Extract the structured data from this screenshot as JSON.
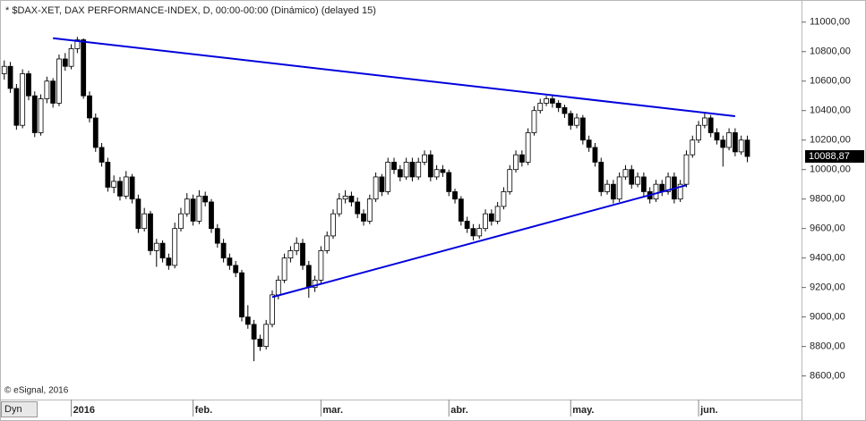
{
  "chart_data": {
    "type": "candlestick",
    "title": "* $DAX-XET, DAX PERFORMANCE-INDEX, D, 00:00-00:00 (Dinámico) (delayed 15)",
    "credit": "© eSignal, 2016",
    "button": "Dyn",
    "last_price": {
      "value": 10088.87,
      "label": "10088,87"
    },
    "up_color": "#ffffff",
    "down_color": "#000000",
    "trendline_color": "#0000dd",
    "ylim": [
      8440,
      11150
    ],
    "xlim": [
      -0.7,
      130.9
    ],
    "yticks": [
      {
        "value": 8600,
        "label": "8600,00"
      },
      {
        "value": 8800,
        "label": "8800,00"
      },
      {
        "value": 9000,
        "label": "9000,00"
      },
      {
        "value": 9200,
        "label": "9200,00"
      },
      {
        "value": 9400,
        "label": "9400,00"
      },
      {
        "value": 9600,
        "label": "9600,00"
      },
      {
        "value": 9800,
        "label": "9800,00"
      },
      {
        "value": 10000,
        "label": "10000,00"
      },
      {
        "value": 10200,
        "label": "10200,00"
      },
      {
        "value": 10400,
        "label": "10400,00"
      },
      {
        "value": 10600,
        "label": "10600,00"
      },
      {
        "value": 10800,
        "label": "10800,00"
      },
      {
        "value": 11000,
        "label": "11000,00"
      }
    ],
    "xticks": [
      {
        "value": 11,
        "label": "2016"
      },
      {
        "value": 31,
        "label": "feb."
      },
      {
        "value": 52,
        "label": "mar."
      },
      {
        "value": 73,
        "label": "abr."
      },
      {
        "value": 93,
        "label": "may."
      },
      {
        "value": 114,
        "label": "jun."
      }
    ],
    "trendlines": [
      {
        "x": [
          8,
          120
        ],
        "values": [
          10891,
          10362
        ]
      },
      {
        "x": [
          44,
          112
        ],
        "values": [
          9135,
          9894
        ]
      }
    ],
    "ohlc": [
      [
        10650,
        10740,
        10610,
        10700
      ],
      [
        10700,
        10730,
        10520,
        10550
      ],
      [
        10550,
        10580,
        10270,
        10300
      ],
      [
        10300,
        10680,
        10280,
        10650
      ],
      [
        10650,
        10670,
        10470,
        10500
      ],
      [
        10500,
        10530,
        10220,
        10250
      ],
      [
        10250,
        10510,
        10230,
        10480
      ],
      [
        10480,
        10630,
        10450,
        10600
      ],
      [
        10600,
        10620,
        10420,
        10450
      ],
      [
        10450,
        10780,
        10430,
        10750
      ],
      [
        10750,
        10790,
        10670,
        10700
      ],
      [
        10700,
        10850,
        10680,
        10820
      ],
      [
        10820,
        10900,
        10790,
        10880
      ],
      [
        10880,
        10890,
        10480,
        10500
      ],
      [
        10500,
        10530,
        10320,
        10350
      ],
      [
        10350,
        10380,
        10120,
        10150
      ],
      [
        10150,
        10180,
        10020,
        10050
      ],
      [
        10050,
        10080,
        9850,
        9880
      ],
      [
        9880,
        9960,
        9840,
        9920
      ],
      [
        9920,
        9950,
        9790,
        9820
      ],
      [
        9820,
        9990,
        9800,
        9950
      ],
      [
        9950,
        9970,
        9770,
        9800
      ],
      [
        9800,
        9830,
        9570,
        9600
      ],
      [
        9600,
        9740,
        9580,
        9700
      ],
      [
        9700,
        9720,
        9420,
        9450
      ],
      [
        9450,
        9530,
        9340,
        9500
      ],
      [
        9500,
        9520,
        9370,
        9400
      ],
      [
        9400,
        9430,
        9320,
        9350
      ],
      [
        9350,
        9640,
        9330,
        9600
      ],
      [
        9600,
        9740,
        9580,
        9700
      ],
      [
        9700,
        9840,
        9680,
        9800
      ],
      [
        9800,
        9830,
        9620,
        9650
      ],
      [
        9650,
        9860,
        9630,
        9820
      ],
      [
        9820,
        9850,
        9750,
        9780
      ],
      [
        9780,
        9800,
        9570,
        9600
      ],
      [
        9600,
        9630,
        9470,
        9500
      ],
      [
        9500,
        9530,
        9370,
        9400
      ],
      [
        9400,
        9430,
        9320,
        9350
      ],
      [
        9350,
        9380,
        9270,
        9300
      ],
      [
        9300,
        9320,
        8970,
        9000
      ],
      [
        9000,
        9080,
        8920,
        8950
      ],
      [
        8950,
        8980,
        8700,
        8850
      ],
      [
        8850,
        8880,
        8770,
        8800
      ],
      [
        8800,
        8980,
        8780,
        8950
      ],
      [
        8950,
        9180,
        8930,
        9150
      ],
      [
        9150,
        9280,
        9120,
        9250
      ],
      [
        9250,
        9430,
        9230,
        9400
      ],
      [
        9400,
        9480,
        9370,
        9450
      ],
      [
        9450,
        9540,
        9420,
        9500
      ],
      [
        9500,
        9530,
        9320,
        9350
      ],
      [
        9350,
        9380,
        9130,
        9200
      ],
      [
        9200,
        9280,
        9170,
        9250
      ],
      [
        9250,
        9480,
        9230,
        9450
      ],
      [
        9450,
        9580,
        9430,
        9550
      ],
      [
        9550,
        9730,
        9530,
        9700
      ],
      [
        9700,
        9840,
        9680,
        9800
      ],
      [
        9800,
        9860,
        9770,
        9820
      ],
      [
        9820,
        9850,
        9750,
        9780
      ],
      [
        9780,
        9810,
        9670,
        9700
      ],
      [
        9700,
        9730,
        9620,
        9650
      ],
      [
        9650,
        9830,
        9630,
        9800
      ],
      [
        9800,
        9980,
        9780,
        9950
      ],
      [
        9950,
        9970,
        9820,
        9850
      ],
      [
        9850,
        10080,
        9830,
        10050
      ],
      [
        10050,
        10080,
        9970,
        10000
      ],
      [
        10000,
        10030,
        9920,
        9950
      ],
      [
        9950,
        10080,
        9930,
        10050
      ],
      [
        10050,
        10080,
        9920,
        9950
      ],
      [
        9950,
        10080,
        9930,
        10050
      ],
      [
        10050,
        10130,
        10030,
        10100
      ],
      [
        10100,
        10130,
        9920,
        9950
      ],
      [
        9950,
        10030,
        9930,
        10000
      ],
      [
        10000,
        10030,
        9950,
        9980
      ],
      [
        9980,
        10000,
        9820,
        9850
      ],
      [
        9850,
        9870,
        9770,
        9800
      ],
      [
        9800,
        9820,
        9620,
        9650
      ],
      [
        9650,
        9680,
        9570,
        9600
      ],
      [
        9600,
        9630,
        9520,
        9550
      ],
      [
        9550,
        9630,
        9530,
        9600
      ],
      [
        9600,
        9730,
        9580,
        9700
      ],
      [
        9700,
        9730,
        9620,
        9650
      ],
      [
        9650,
        9780,
        9630,
        9750
      ],
      [
        9750,
        9880,
        9730,
        9850
      ],
      [
        9850,
        10030,
        9830,
        10000
      ],
      [
        10000,
        10130,
        9980,
        10100
      ],
      [
        10100,
        10130,
        10020,
        10050
      ],
      [
        10050,
        10280,
        10030,
        10250
      ],
      [
        10250,
        10430,
        10230,
        10400
      ],
      [
        10400,
        10480,
        10380,
        10450
      ],
      [
        10450,
        10500,
        10430,
        10480
      ],
      [
        10480,
        10500,
        10420,
        10450
      ],
      [
        10450,
        10470,
        10390,
        10420
      ],
      [
        10420,
        10440,
        10350,
        10380
      ],
      [
        10380,
        10400,
        10270,
        10300
      ],
      [
        10300,
        10380,
        10280,
        10350
      ],
      [
        10350,
        10370,
        10170,
        10200
      ],
      [
        10200,
        10230,
        10120,
        10150
      ],
      [
        10150,
        10180,
        10020,
        10050
      ],
      [
        10050,
        10080,
        9820,
        9850
      ],
      [
        9850,
        9930,
        9830,
        9900
      ],
      [
        9900,
        9930,
        9770,
        9800
      ],
      [
        9800,
        9980,
        9780,
        9950
      ],
      [
        9950,
        10030,
        9930,
        10000
      ],
      [
        10000,
        10030,
        9870,
        9900
      ],
      [
        9900,
        9980,
        9880,
        9950
      ],
      [
        9950,
        9980,
        9820,
        9850
      ],
      [
        9850,
        9880,
        9770,
        9800
      ],
      [
        9800,
        9930,
        9780,
        9900
      ],
      [
        9900,
        9930,
        9820,
        9850
      ],
      [
        9850,
        9980,
        9830,
        9950
      ],
      [
        9950,
        9980,
        9770,
        9800
      ],
      [
        9800,
        9930,
        9780,
        9900
      ],
      [
        9900,
        10130,
        9880,
        10100
      ],
      [
        10100,
        10230,
        10080,
        10200
      ],
      [
        10200,
        10330,
        10180,
        10300
      ],
      [
        10300,
        10380,
        10280,
        10350
      ],
      [
        10350,
        10370,
        10220,
        10250
      ],
      [
        10250,
        10280,
        10170,
        10200
      ],
      [
        10200,
        10230,
        10020,
        10150
      ],
      [
        10150,
        10280,
        10130,
        10250
      ],
      [
        10250,
        10280,
        10090,
        10120
      ],
      [
        10120,
        10230,
        10100,
        10200
      ],
      [
        10200,
        10230,
        10050,
        10088.87
      ]
    ]
  }
}
